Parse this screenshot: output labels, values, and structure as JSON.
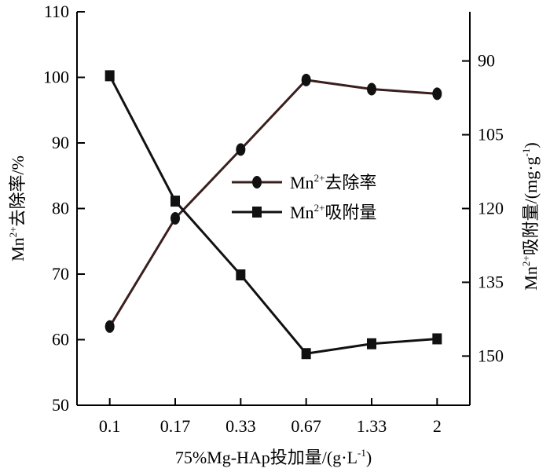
{
  "chart_data": {
    "type": "line",
    "categories": [
      "0.1",
      "0.17",
      "0.33",
      "0.67",
      "1.33",
      "2"
    ],
    "xlabel": {
      "pre": "75%Mg-HAp投加量/(g·L",
      "sup": "-1",
      "post": ")"
    },
    "ylabel_left": {
      "pre": "Mn",
      "sup": "2+",
      "post": "去除率/%"
    },
    "ylabel_right": {
      "pre": "Mn",
      "sup": "2+",
      "post": "吸附量/(mg·g",
      "sup2": "-1",
      "post2": ")"
    },
    "y_left": {
      "min": 50,
      "max": 110,
      "ticks": [
        50,
        60,
        70,
        80,
        90,
        100,
        110
      ]
    },
    "y_right": {
      "min": 160,
      "max": 80,
      "inverted": true,
      "ticks": [
        90,
        105,
        120,
        135,
        150
      ]
    },
    "legend_position": "center-right",
    "series": [
      {
        "name": {
          "pre": "Mn",
          "sup": "2+",
          "post": "去除率"
        },
        "axis": "left",
        "marker": "circle",
        "color": "#3a1f1f",
        "values": [
          62,
          78.5,
          89,
          99.6,
          98.2,
          97.5
        ]
      },
      {
        "name": {
          "pre": "Mn",
          "sup": "2+",
          "post": "吸附量"
        },
        "axis": "right",
        "marker": "square",
        "color": "#111111",
        "values": [
          93,
          118.5,
          133.5,
          149.5,
          147.5,
          146.5
        ]
      }
    ]
  }
}
